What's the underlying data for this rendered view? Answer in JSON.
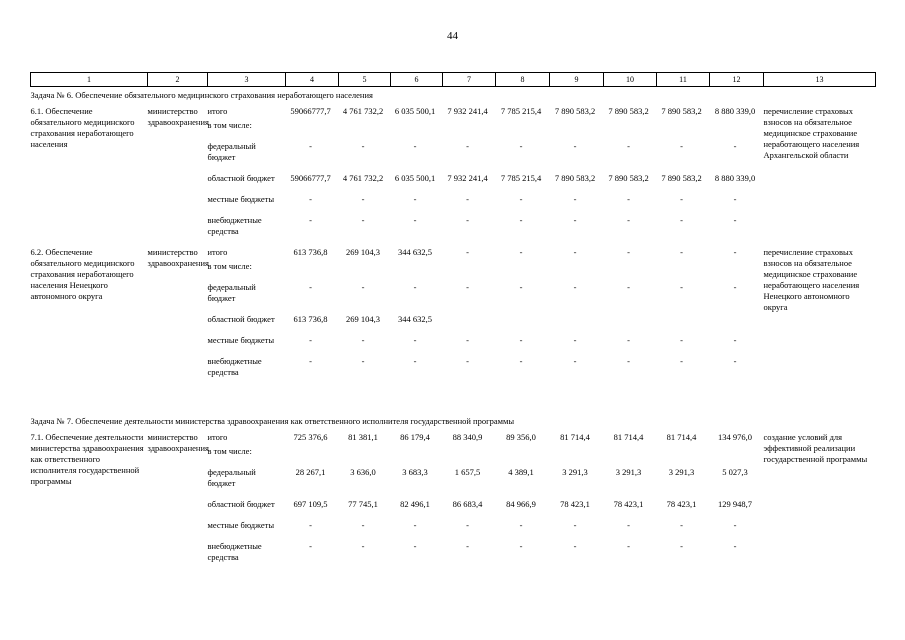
{
  "page_number": "44",
  "table": {
    "columns": [
      "1",
      "2",
      "3",
      "4",
      "5",
      "6",
      "7",
      "8",
      "9",
      "10",
      "11",
      "12",
      "13"
    ],
    "sections": [
      {
        "title": "Задача № 6. Обеспечение обязательного медицинского страхования неработающего населения",
        "groups": [
          {
            "name": "6.1. Обеспечение обязательного медицинского страхования неработающего населения",
            "executor": "министерство здравоохранения",
            "note": "перечисление страховых взносов на обязательное медицинское страхование неработающего населения Архангельской области",
            "lines": [
              {
                "label": "итого",
                "sublabel": "в том числе:",
                "values": [
                  "59066777,7",
                  "4 761 732,2",
                  "6 035 500,1",
                  "7 932 241,4",
                  "7 785 215,4",
                  "7 890 583,2",
                  "7 890 583,2",
                  "7 890 583,2",
                  "8 880 339,0"
                ]
              },
              {
                "label": "федеральный бюджет",
                "values": [
                  "-",
                  "-",
                  "-",
                  "-",
                  "-",
                  "-",
                  "-",
                  "-",
                  "-"
                ]
              },
              {
                "label": "областной бюджет",
                "values": [
                  "59066777,7",
                  "4 761 732,2",
                  "6 035 500,1",
                  "7 932 241,4",
                  "7 785 215,4",
                  "7 890 583,2",
                  "7 890 583,2",
                  "7 890 583,2",
                  "8 880 339,0"
                ]
              },
              {
                "label": "местные бюджеты",
                "values": [
                  "-",
                  "-",
                  "-",
                  "-",
                  "-",
                  "-",
                  "-",
                  "-",
                  "-"
                ]
              },
              {
                "label": "внебюджетные средства",
                "values": [
                  "-",
                  "-",
                  "-",
                  "-",
                  "-",
                  "-",
                  "-",
                  "-",
                  "-"
                ]
              }
            ]
          },
          {
            "name": "6.2. Обеспечение обязательного медицинского страхования неработающего населения Ненецкого автономного округа",
            "executor": "министерство здравоохранения",
            "note": "перечисление страховых взносов на обязательное медицинское страхование неработающего населения Ненецкого автономного округа",
            "lines": [
              {
                "label": "итого",
                "sublabel": "в том числе:",
                "values": [
                  "613 736,8",
                  "269 104,3",
                  "344 632,5",
                  "-",
                  "-",
                  "-",
                  "-",
                  "-",
                  "-"
                ]
              },
              {
                "label": "федеральный бюджет",
                "values": [
                  "-",
                  "-",
                  "-",
                  "-",
                  "-",
                  "-",
                  "-",
                  "-",
                  "-"
                ]
              },
              {
                "label": "областной бюджет",
                "values": [
                  "613 736,8",
                  "269 104,3",
                  "344 632,5",
                  "",
                  "",
                  "",
                  "",
                  "",
                  ""
                ]
              },
              {
                "label": "местные бюджеты",
                "values": [
                  "-",
                  "-",
                  "-",
                  "-",
                  "-",
                  "-",
                  "-",
                  "-",
                  "-"
                ]
              },
              {
                "label": "внебюджетные средства",
                "values": [
                  "-",
                  "-",
                  "-",
                  "-",
                  "-",
                  "-",
                  "-",
                  "-",
                  "-"
                ]
              }
            ]
          }
        ]
      },
      {
        "title": "Задача № 7. Обеспечение деятельности министерства здравоохранения как ответственного исполнителя государственной программы",
        "groups": [
          {
            "name": "7.1. Обеспечение деятельности министерства здравоохранения как ответственного исполнителя государственной программы",
            "executor": "министерство здравоохранения",
            "note": "создание условий для эффективной реализации государственной программы",
            "lines": [
              {
                "label": "итого",
                "sublabel": "в том числе:",
                "values": [
                  "725 376,6",
                  "81 381,1",
                  "86 179,4",
                  "88 340,9",
                  "89 356,0",
                  "81 714,4",
                  "81 714,4",
                  "81 714,4",
                  "134 976,0"
                ]
              },
              {
                "label": "федеральный бюджет",
                "values": [
                  "28 267,1",
                  "3 636,0",
                  "3 683,3",
                  "1 657,5",
                  "4 389,1",
                  "3 291,3",
                  "3 291,3",
                  "3 291,3",
                  "5 027,3"
                ]
              },
              {
                "label": "областной бюджет",
                "values": [
                  "697 109,5",
                  "77 745,1",
                  "82 496,1",
                  "86 683,4",
                  "84 966,9",
                  "78 423,1",
                  "78 423,1",
                  "78 423,1",
                  "129 948,7"
                ]
              },
              {
                "label": "местные бюджеты",
                "values": [
                  "-",
                  "-",
                  "-",
                  "-",
                  "-",
                  "-",
                  "-",
                  "-",
                  "-"
                ]
              },
              {
                "label": "внебюджетные средства",
                "values": [
                  "-",
                  "-",
                  "-",
                  "-",
                  "-",
                  "-",
                  "-",
                  "-",
                  "-"
                ]
              }
            ]
          }
        ]
      }
    ]
  }
}
